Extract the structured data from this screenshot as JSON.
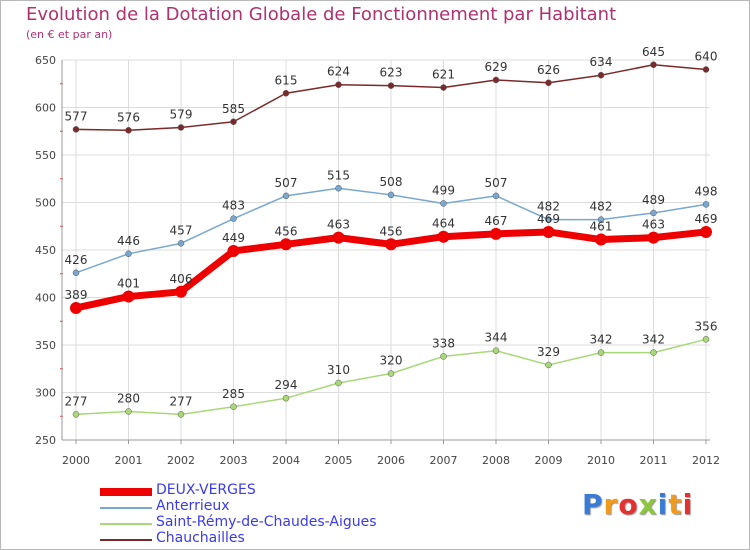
{
  "header": {
    "title": "Evolution de la Dotation Globale de Fonctionnement par Habitant",
    "subtitle": "(en € et par an)"
  },
  "logo": {
    "text": "Proxiti"
  },
  "chart_data": {
    "type": "line",
    "title": "Evolution de la Dotation Globale de Fonctionnement par Habitant",
    "subtitle": "(en € et par an)",
    "x": [
      "2000",
      "2001",
      "2002",
      "2003",
      "2004",
      "2005",
      "2006",
      "2007",
      "2008",
      "2009",
      "2010",
      "2011",
      "2012"
    ],
    "yticks": [
      250,
      300,
      350,
      400,
      450,
      500,
      550,
      600,
      650
    ],
    "ylim": [
      250,
      650
    ],
    "grid": true,
    "legend_position": "bottom-left",
    "series": [
      {
        "name": "DEUX-VERGES",
        "color": "#ee0000",
        "values": [
          389,
          401,
          406,
          449,
          456,
          463,
          456,
          464,
          467,
          469,
          461,
          463,
          469
        ]
      },
      {
        "name": "Anterrieux",
        "color": "#78a8d0",
        "values": [
          426,
          446,
          457,
          483,
          507,
          515,
          508,
          499,
          507,
          482,
          482,
          489,
          498
        ]
      },
      {
        "name": "Saint-Rémy-de-Chaudes-Aigues",
        "color": "#a8d878",
        "values": [
          277,
          280,
          277,
          285,
          294,
          310,
          320,
          338,
          344,
          329,
          342,
          342,
          356
        ]
      },
      {
        "name": "Chauchailles",
        "color": "#7a2a2a",
        "values": [
          577,
          576,
          579,
          585,
          615,
          624,
          623,
          621,
          629,
          626,
          634,
          645,
          640
        ]
      }
    ]
  }
}
